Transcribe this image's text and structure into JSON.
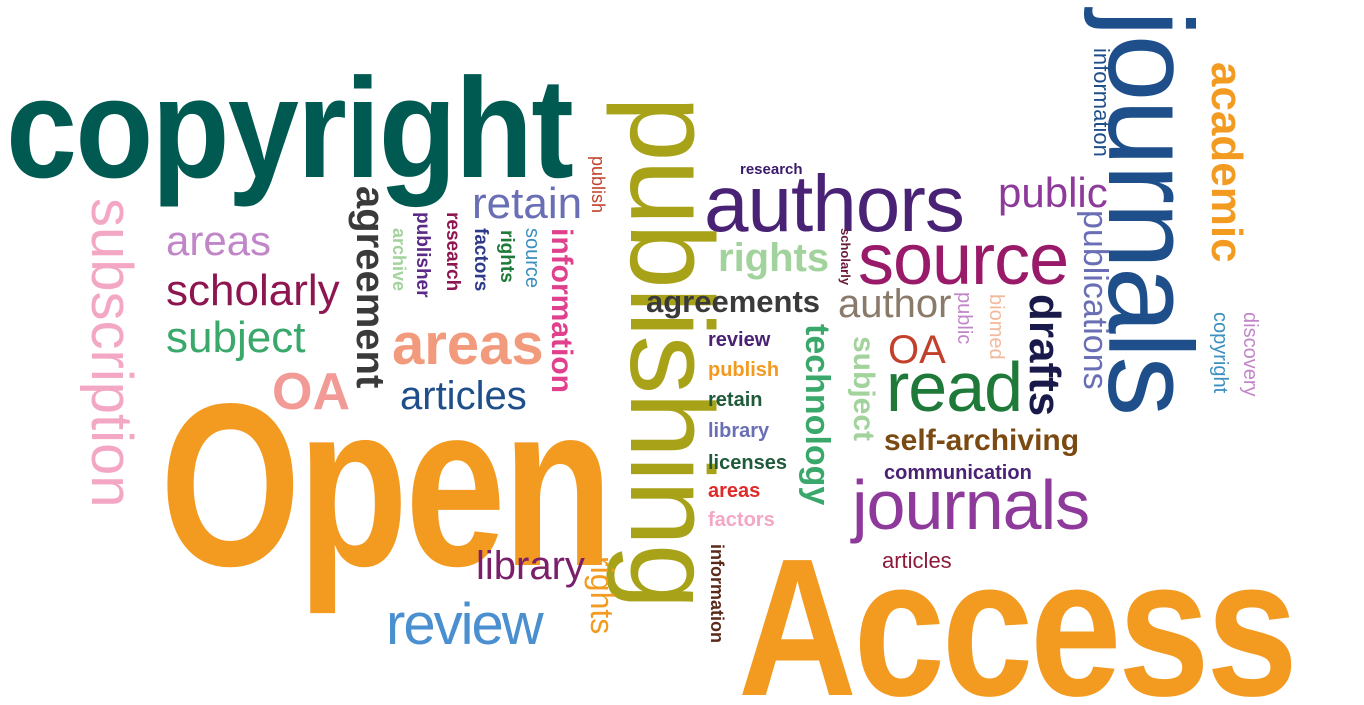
{
  "words": {
    "copyright": {
      "text": "copyright",
      "color": "#005a52"
    },
    "subscription": {
      "text": "subscription",
      "color": "#f4a7c4"
    },
    "areas1": {
      "text": "areas",
      "color": "#c186c8"
    },
    "scholarly1": {
      "text": "scholarly",
      "color": "#8e1650"
    },
    "subject1": {
      "text": "subject",
      "color": "#3aa86a"
    },
    "oa1": {
      "text": "OA",
      "color": "#f29a96"
    },
    "open": {
      "text": "Open",
      "color": "#f39a21"
    },
    "agreement": {
      "text": "agreement",
      "color": "#3a3a3a"
    },
    "archive": {
      "text": "archive",
      "color": "#a3d39c"
    },
    "publisher": {
      "text": "publisher",
      "color": "#5b2a86"
    },
    "research1": {
      "text": "research",
      "color": "#8e1650"
    },
    "factors1": {
      "text": "factors",
      "color": "#2f3a88"
    },
    "rights1": {
      "text": "rights",
      "color": "#1f7a3a"
    },
    "source1": {
      "text": "source",
      "color": "#3a8fbf"
    },
    "information1": {
      "text": "information",
      "color": "#e0408c"
    },
    "retain1": {
      "text": "retain",
      "color": "#6a6fb5"
    },
    "areas2": {
      "text": "areas",
      "color": "#f29a7c"
    },
    "articles1": {
      "text": "articles",
      "color": "#1f4f8a"
    },
    "publish1": {
      "text": "publish",
      "color": "#c2412c"
    },
    "publishing": {
      "text": "publishing",
      "color": "#a8a219"
    },
    "library1": {
      "text": "library",
      "color": "#7a1f6a"
    },
    "rights2": {
      "text": "rights",
      "color": "#f39a21"
    },
    "review1": {
      "text": "review",
      "color": "#4a8fd0"
    },
    "information2": {
      "text": "information",
      "color": "#5a2a1a"
    },
    "research2": {
      "text": "research",
      "color": "#3a1a6a"
    },
    "authors": {
      "text": "authors",
      "color": "#4a2275"
    },
    "rights3": {
      "text": "rights",
      "color": "#a3d39c"
    },
    "scholarly2": {
      "text": "scholarly",
      "color": "#6a1a3a"
    },
    "agreements": {
      "text": "agreements",
      "color": "#3a3a3a"
    },
    "review2": {
      "text": "review",
      "color": "#4a2275"
    },
    "publish2": {
      "text": "publish",
      "color": "#f39a21"
    },
    "retain2": {
      "text": "retain",
      "color": "#1f5a3a"
    },
    "library2": {
      "text": "library",
      "color": "#6a6fb5"
    },
    "licenses": {
      "text": "licenses",
      "color": "#1f5a3a"
    },
    "areas3": {
      "text": "areas",
      "color": "#e02a2a"
    },
    "factors2": {
      "text": "factors",
      "color": "#f4a7c4"
    },
    "technology": {
      "text": "technology",
      "color": "#3aa86a"
    },
    "subject2": {
      "text": "subject",
      "color": "#a3d39c"
    },
    "public1": {
      "text": "public",
      "color": "#8e3a9a"
    },
    "source2": {
      "text": "source",
      "color": "#9a1a6a"
    },
    "author": {
      "text": "author",
      "color": "#8a7a6a"
    },
    "public2": {
      "text": "public",
      "color": "#c186c8"
    },
    "biomed": {
      "text": "biomed",
      "color": "#f4b89c"
    },
    "oa2": {
      "text": "OA",
      "color": "#c2412c"
    },
    "read": {
      "text": "read",
      "color": "#1f7a3a"
    },
    "drafts": {
      "text": "drafts",
      "color": "#1a1a4a"
    },
    "selfarchiving": {
      "text": "self-archiving",
      "color": "#7a4a12"
    },
    "communication": {
      "text": "communication",
      "color": "#4a2275"
    },
    "journals1": {
      "text": "journals",
      "color": "#8e3a9a"
    },
    "articles2": {
      "text": "articles",
      "color": "#8e1a3a"
    },
    "access": {
      "text": "Access",
      "color": "#f39a21"
    },
    "information3": {
      "text": "information",
      "color": "#1f4f8a"
    },
    "publications": {
      "text": "publications",
      "color": "#6a6fb5"
    },
    "journals2": {
      "text": "journals",
      "color": "#1f4f8a"
    },
    "academic": {
      "text": "academic",
      "color": "#f39a21"
    },
    "copyright2": {
      "text": "copyright",
      "color": "#3a8fbf"
    },
    "discovery": {
      "text": "discovery",
      "color": "#c186c8"
    }
  }
}
